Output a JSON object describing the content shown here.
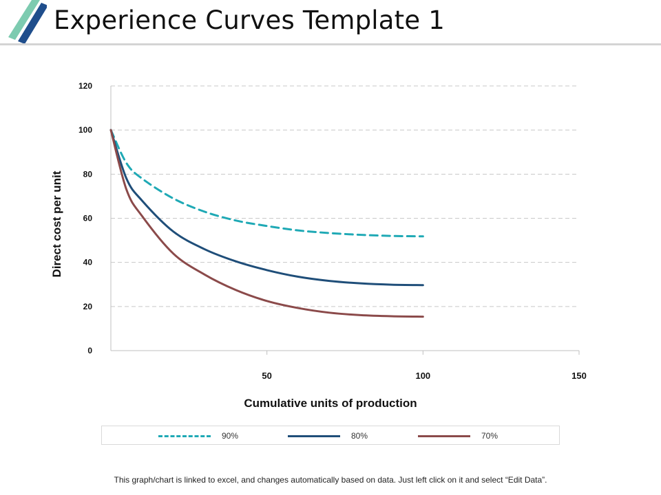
{
  "slide": {
    "title": "Experience Curves Template 1",
    "footer_note": "This graph/chart is linked to excel, and changes automatically based on data. Just left click on it and select “Edit Data”."
  },
  "colors": {
    "logo_light": "#7dcbb0",
    "logo_dark": "#1f4e8c",
    "series_90": "#1fa9b5",
    "series_80": "#1f4e79",
    "series_70": "#8b4a4a",
    "grid": "#c8c8c8"
  },
  "chart_data": {
    "type": "line",
    "title": "",
    "xlabel": "Cumulative units of production",
    "ylabel": "Direct cost per unit",
    "xlim": [
      0,
      150
    ],
    "ylim": [
      0,
      120
    ],
    "x_ticks": [
      50,
      100,
      150
    ],
    "y_ticks": [
      0,
      20,
      40,
      60,
      80,
      100,
      120
    ],
    "grid": "horizontal dashed",
    "legend_position": "bottom",
    "series": [
      {
        "name": "90%",
        "style": "dashed",
        "color": "#1fa9b5",
        "x": [
          0,
          5,
          10,
          20,
          30,
          40,
          50,
          60,
          70,
          80,
          90,
          100
        ],
        "y": [
          100,
          85,
          78,
          69,
          63,
          59,
          56.5,
          54.5,
          53.3,
          52.5,
          52,
          51.8
        ]
      },
      {
        "name": "80%",
        "style": "solid",
        "color": "#1f4e79",
        "x": [
          0,
          5,
          10,
          20,
          30,
          40,
          50,
          60,
          70,
          80,
          90,
          100
        ],
        "y": [
          100,
          78,
          68,
          54,
          46,
          40.5,
          36.5,
          33.5,
          31.6,
          30.5,
          29.9,
          29.7
        ]
      },
      {
        "name": "70%",
        "style": "solid",
        "color": "#8b4a4a",
        "x": [
          0,
          5,
          10,
          20,
          30,
          40,
          50,
          60,
          70,
          80,
          90,
          100
        ],
        "y": [
          100,
          73,
          61,
          44,
          34.5,
          27.5,
          22.5,
          19.3,
          17.2,
          16.1,
          15.6,
          15.4
        ]
      }
    ]
  }
}
